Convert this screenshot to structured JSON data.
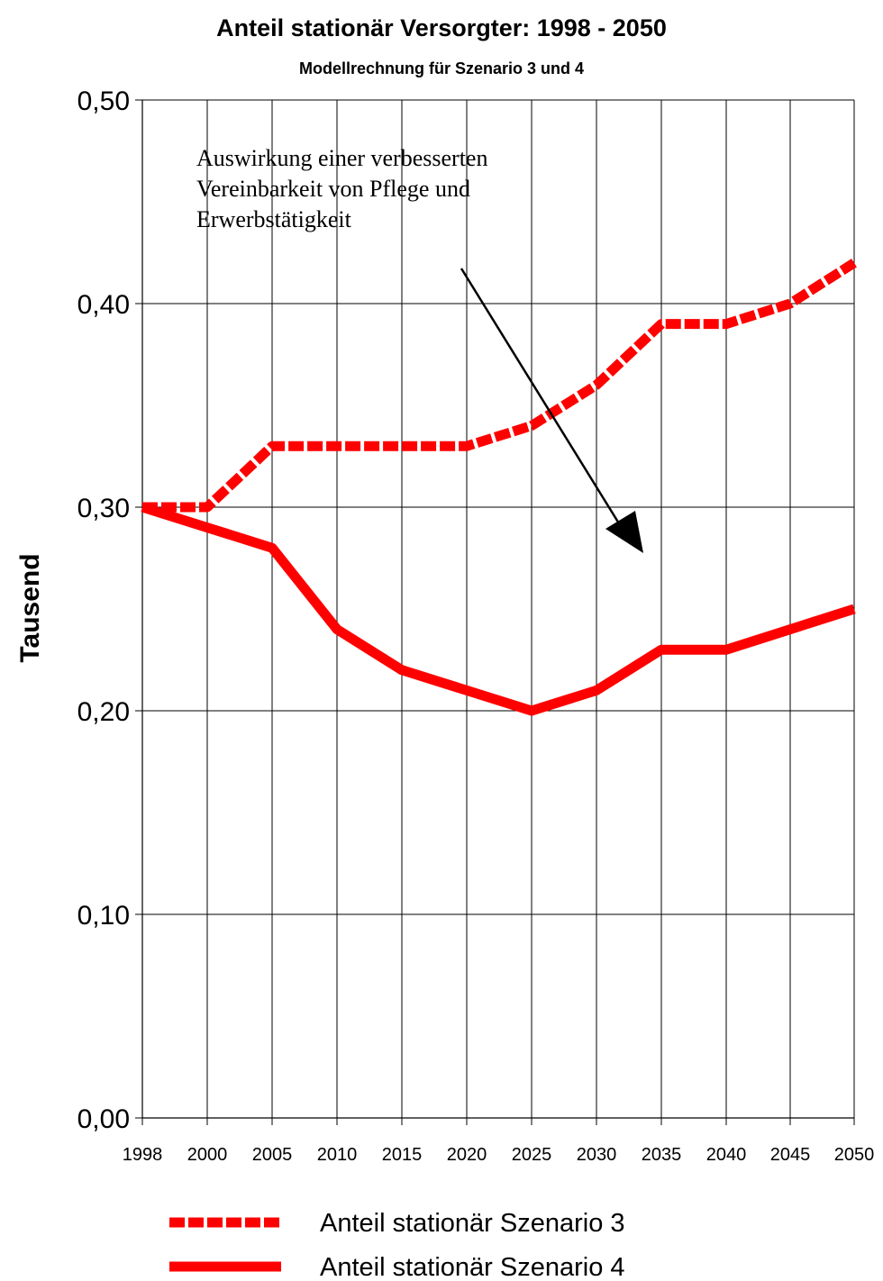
{
  "chart_data": {
    "type": "line",
    "title": "Anteil stationär Versorgter: 1998 - 2050",
    "subtitle": "Modellrechnung für Szenario 3 und 4",
    "ylabel": "Tausend",
    "xlabel": "",
    "categories": [
      "1998",
      "2000",
      "2005",
      "2010",
      "2015",
      "2020",
      "2025",
      "2030",
      "2035",
      "2040",
      "2045",
      "2050"
    ],
    "yticks": [
      "0,00",
      "0,10",
      "0,20",
      "0,30",
      "0,40",
      "0,50"
    ],
    "ylim": [
      0,
      0.5
    ],
    "grid": true,
    "legend_position": "bottom",
    "series": [
      {
        "name": "Anteil stationär Szenario 3",
        "style": "dashed",
        "color": "#ff0000",
        "values": [
          0.3,
          0.3,
          0.33,
          0.33,
          0.33,
          0.33,
          0.34,
          0.36,
          0.39,
          0.39,
          0.4,
          0.42
        ]
      },
      {
        "name": "Anteil stationär Szenario 4",
        "style": "solid",
        "color": "#ff0000",
        "values": [
          0.3,
          0.29,
          0.28,
          0.24,
          0.22,
          0.21,
          0.2,
          0.21,
          0.23,
          0.23,
          0.24,
          0.25
        ]
      }
    ],
    "annotation": {
      "lines": [
        "Auswirkung einer verbesserten",
        "Vereinbarkeit von Pflege und",
        "Erwerbstätigkeit"
      ]
    }
  }
}
